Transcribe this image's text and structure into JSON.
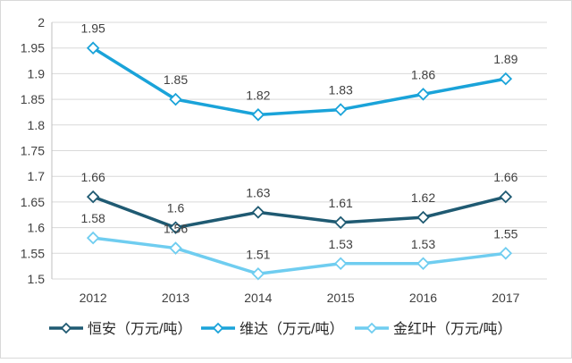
{
  "chart_data": {
    "type": "line",
    "title": "",
    "xlabel": "",
    "ylabel": "",
    "ylim": [
      1.5,
      2.0
    ],
    "yticks": [
      "1.5",
      "1.55",
      "1.6",
      "1.65",
      "1.7",
      "1.75",
      "1.8",
      "1.85",
      "1.9",
      "1.95",
      "2"
    ],
    "categories": [
      "2012",
      "2013",
      "2014",
      "2015",
      "2016",
      "2017"
    ],
    "grid": true,
    "legend_position": "bottom",
    "series": [
      {
        "name": "恒安（万元/吨）",
        "color": "#1f5a72",
        "values": [
          1.66,
          1.6,
          1.63,
          1.61,
          1.62,
          1.66
        ],
        "labels": [
          "1.66",
          "1.6",
          "1.63",
          "1.61",
          "1.62",
          "1.66"
        ]
      },
      {
        "name": "维达（万元/吨）",
        "color": "#1aa3d9",
        "values": [
          1.95,
          1.85,
          1.82,
          1.83,
          1.86,
          1.89
        ],
        "labels": [
          "1.95",
          "1.85",
          "1.82",
          "1.83",
          "1.86",
          "1.89"
        ]
      },
      {
        "name": "金红叶（万元/吨）",
        "color": "#6fcdf0",
        "values": [
          1.58,
          1.56,
          1.51,
          1.53,
          1.53,
          1.55
        ],
        "labels": [
          "1.58",
          "1.56",
          "1.51",
          "1.53",
          "1.53",
          "1.55"
        ]
      }
    ]
  }
}
